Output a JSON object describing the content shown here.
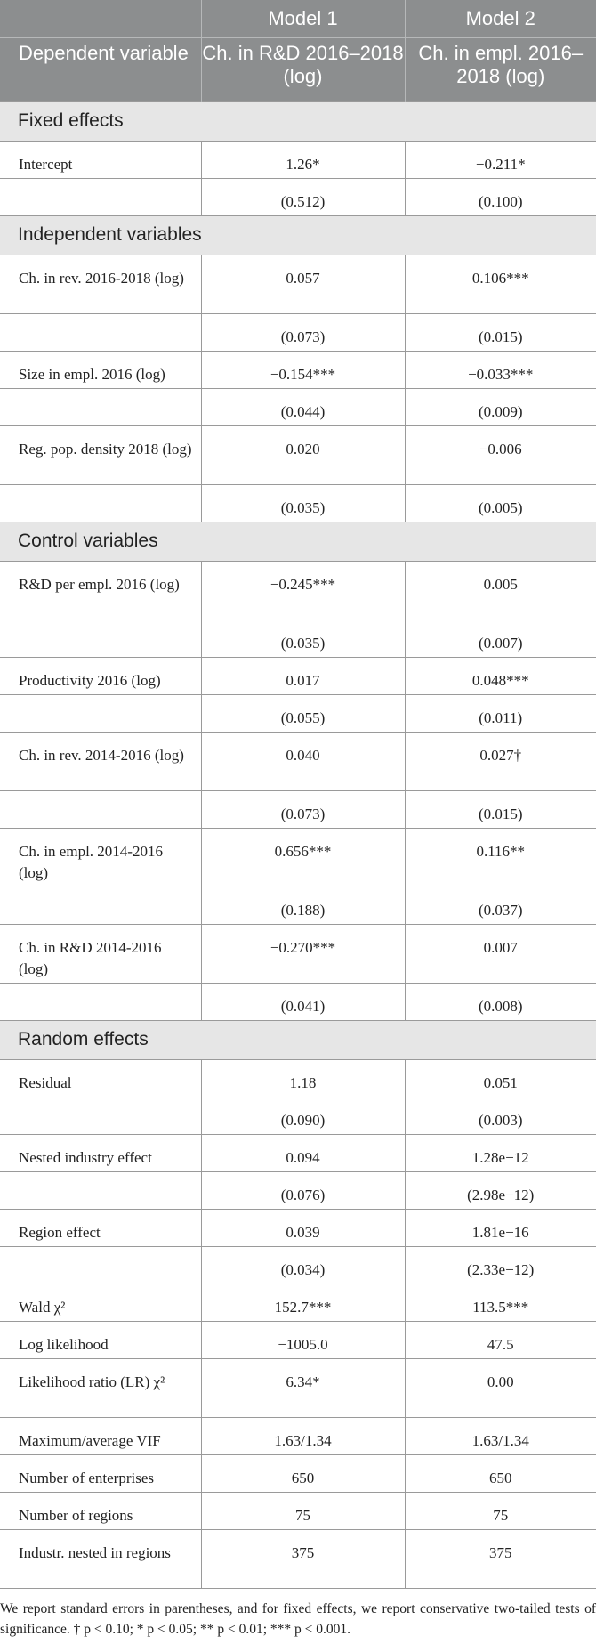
{
  "header": {
    "model1": "Model 1",
    "model2": "Model 2",
    "dep_var": "Dependent variable",
    "dv1": "Ch. in R&D 2016–2018 (log)",
    "dv2": "Ch. in empl. 2016–2018 (log)"
  },
  "sections": [
    {
      "title": "Fixed effects",
      "rows": [
        {
          "label": "Intercept",
          "m1": "1.26*",
          "m2": "−0.211*",
          "tall": false
        },
        {
          "label": "",
          "m1": "(0.512)",
          "m2": "(0.100)",
          "tall": false
        }
      ]
    },
    {
      "title": "Independent variables",
      "rows": [
        {
          "label": "Ch. in rev. 2016-2018 (log)",
          "m1": "0.057",
          "m2": "0.106***",
          "tall": true
        },
        {
          "label": "",
          "m1": "(0.073)",
          "m2": "(0.015)",
          "tall": false
        },
        {
          "label": "Size in empl. 2016 (log)",
          "m1": "−0.154***",
          "m2": "−0.033***",
          "tall": false
        },
        {
          "label": "",
          "m1": "(0.044)",
          "m2": "(0.009)",
          "tall": false
        },
        {
          "label": "Reg. pop. density 2018 (log)",
          "m1": "0.020",
          "m2": "−0.006",
          "tall": true
        },
        {
          "label": "",
          "m1": "(0.035)",
          "m2": "(0.005)",
          "tall": false
        }
      ]
    },
    {
      "title": "Control variables",
      "rows": [
        {
          "label": "R&D per empl. 2016 (log)",
          "m1": "−0.245***",
          "m2": "0.005",
          "tall": true
        },
        {
          "label": "",
          "m1": "(0.035)",
          "m2": "(0.007)",
          "tall": false
        },
        {
          "label": "Productivity 2016 (log)",
          "m1": "0.017",
          "m2": "0.048***",
          "tall": false
        },
        {
          "label": "",
          "m1": "(0.055)",
          "m2": "(0.011)",
          "tall": false
        },
        {
          "label": "Ch. in rev. 2014-2016 (log)",
          "m1": "0.040",
          "m2": "0.027†",
          "tall": true
        },
        {
          "label": "",
          "m1": "(0.073)",
          "m2": "(0.015)",
          "tall": false
        },
        {
          "label": "Ch. in empl. 2014-2016 (log)",
          "m1": "0.656***",
          "m2": "0.116**",
          "tall": true
        },
        {
          "label": "",
          "m1": "(0.188)",
          "m2": "(0.037)",
          "tall": false
        },
        {
          "label": "Ch. in R&D 2014-2016 (log)",
          "m1": "−0.270***",
          "m2": "0.007",
          "tall": true
        },
        {
          "label": "",
          "m1": "(0.041)",
          "m2": "(0.008)",
          "tall": false
        }
      ]
    },
    {
      "title": "Random effects",
      "rows": [
        {
          "label": "Residual",
          "m1": "1.18",
          "m2": "0.051",
          "tall": false
        },
        {
          "label": "",
          "m1": "(0.090)",
          "m2": "(0.003)",
          "tall": false
        },
        {
          "label": "Nested industry effect",
          "m1": "0.094",
          "m2": "1.28e−12",
          "tall": false
        },
        {
          "label": "",
          "m1": "(0.076)",
          "m2": "(2.98e−12)",
          "tall": false
        },
        {
          "label": "Region effect",
          "m1": "0.039",
          "m2": "1.81e−16",
          "tall": false
        },
        {
          "label": "",
          "m1": "(0.034)",
          "m2": "(2.33e−12)",
          "tall": false
        },
        {
          "label": "Wald χ²",
          "m1": "152.7***",
          "m2": "113.5***",
          "tall": false
        },
        {
          "label": "Log likelihood",
          "m1": "−1005.0",
          "m2": "47.5",
          "tall": false
        },
        {
          "label": "Likelihood ratio (LR) χ²",
          "m1": "6.34*",
          "m2": "0.00",
          "tall": true
        },
        {
          "label": "Maximum/average VIF",
          "m1": "1.63/1.34",
          "m2": "1.63/1.34",
          "tall": false
        },
        {
          "label": "Number of enterprises",
          "m1": "650",
          "m2": "650",
          "tall": false
        },
        {
          "label": "Number of regions",
          "m1": "75",
          "m2": "75",
          "tall": false
        },
        {
          "label": "Industr. nested in regions",
          "m1": "375",
          "m2": "375",
          "tall": true
        }
      ]
    }
  ],
  "footnote": "We report standard errors in parentheses, and for fixed effects, we report conservative two-tailed tests of significance. † p < 0.10; * p < 0.05; ** p < 0.01; *** p < 0.001."
}
